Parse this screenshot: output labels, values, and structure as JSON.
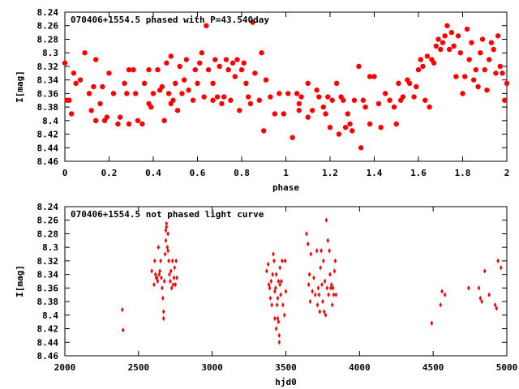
{
  "chart_data": [
    {
      "type": "scatter",
      "title": "070406+1554.5 phased with P=43.540day",
      "xlabel": "phase",
      "ylabel": "I[mag]",
      "xlim": [
        0,
        2
      ],
      "ylim": [
        8.46,
        8.24
      ],
      "y_inverted": true,
      "grid": false,
      "legend": "none",
      "x_ticks": [
        "0",
        "0.2",
        "0.4",
        "0.6",
        "0.8",
        "1",
        "1.2",
        "1.4",
        "1.6",
        "1.8",
        "2"
      ],
      "y_ticks": [
        "8.24",
        "8.26",
        "8.28",
        "8.3",
        "8.32",
        "8.34",
        "8.36",
        "8.38",
        "8.4",
        "8.42",
        "8.44",
        "8.46"
      ],
      "marker": "filled-circle",
      "color": "#ff0000",
      "points": [
        [
          0.0,
          8.315
        ],
        [
          0.01,
          8.37
        ],
        [
          0.02,
          8.37
        ],
        [
          0.03,
          8.39
        ],
        [
          0.04,
          8.33
        ],
        [
          0.05,
          8.345
        ],
        [
          0.07,
          8.34
        ],
        [
          0.09,
          8.3
        ],
        [
          0.11,
          8.36
        ],
        [
          0.12,
          8.385
        ],
        [
          0.13,
          8.35
        ],
        [
          0.14,
          8.31
        ],
        [
          0.14,
          8.4
        ],
        [
          0.16,
          8.375
        ],
        [
          0.17,
          8.35
        ],
        [
          0.18,
          8.4
        ],
        [
          0.19,
          8.395
        ],
        [
          0.2,
          8.33
        ],
        [
          0.22,
          8.36
        ],
        [
          0.24,
          8.405
        ],
        [
          0.25,
          8.395
        ],
        [
          0.27,
          8.345
        ],
        [
          0.28,
          8.36
        ],
        [
          0.29,
          8.325
        ],
        [
          0.29,
          8.405
        ],
        [
          0.31,
          8.325
        ],
        [
          0.32,
          8.36
        ],
        [
          0.33,
          8.4
        ],
        [
          0.35,
          8.405
        ],
        [
          0.36,
          8.345
        ],
        [
          0.38,
          8.325
        ],
        [
          0.38,
          8.375
        ],
        [
          0.39,
          8.38
        ],
        [
          0.4,
          8.36
        ],
        [
          0.42,
          8.325
        ],
        [
          0.43,
          8.355
        ],
        [
          0.44,
          8.35
        ],
        [
          0.45,
          8.4
        ],
        [
          0.46,
          8.315
        ],
        [
          0.47,
          8.36
        ],
        [
          0.48,
          8.305
        ],
        [
          0.48,
          8.375
        ],
        [
          0.49,
          8.37
        ],
        [
          0.5,
          8.345
        ],
        [
          0.51,
          8.385
        ],
        [
          0.52,
          8.32
        ],
        [
          0.53,
          8.36
        ],
        [
          0.54,
          8.34
        ],
        [
          0.55,
          8.31
        ],
        [
          0.56,
          8.355
        ],
        [
          0.58,
          8.37
        ],
        [
          0.59,
          8.325
        ],
        [
          0.6,
          8.345
        ],
        [
          0.61,
          8.315
        ],
        [
          0.62,
          8.3
        ],
        [
          0.63,
          8.365
        ],
        [
          0.64,
          8.26
        ],
        [
          0.65,
          8.325
        ],
        [
          0.67,
          8.345
        ],
        [
          0.67,
          8.37
        ],
        [
          0.68,
          8.31
        ],
        [
          0.69,
          8.365
        ],
        [
          0.7,
          8.32
        ],
        [
          0.71,
          8.375
        ],
        [
          0.72,
          8.365
        ],
        [
          0.73,
          8.31
        ],
        [
          0.74,
          8.325
        ],
        [
          0.75,
          8.37
        ],
        [
          0.76,
          8.315
        ],
        [
          0.77,
          8.335
        ],
        [
          0.78,
          8.31
        ],
        [
          0.79,
          8.385
        ],
        [
          0.8,
          8.325
        ],
        [
          0.81,
          8.315
        ],
        [
          0.82,
          8.345
        ],
        [
          0.83,
          8.365
        ],
        [
          0.84,
          8.375
        ],
        [
          0.85,
          8.255
        ],
        [
          0.86,
          8.33
        ],
        [
          0.88,
          8.37
        ],
        [
          0.89,
          8.3
        ],
        [
          0.9,
          8.415
        ],
        [
          0.91,
          8.34
        ],
        [
          0.93,
          8.365
        ],
        [
          0.95,
          8.39
        ],
        [
          0.97,
          8.36
        ],
        [
          0.99,
          8.39
        ],
        [
          1.01,
          8.36
        ],
        [
          1.03,
          8.425
        ],
        [
          1.05,
          8.36
        ],
        [
          1.06,
          8.375
        ],
        [
          1.06,
          8.385
        ],
        [
          1.07,
          8.365
        ],
        [
          1.1,
          8.395
        ],
        [
          1.1,
          8.345
        ],
        [
          1.12,
          8.385
        ],
        [
          1.14,
          8.355
        ],
        [
          1.15,
          8.365
        ],
        [
          1.17,
          8.38
        ],
        [
          1.18,
          8.39
        ],
        [
          1.19,
          8.365
        ],
        [
          1.2,
          8.41
        ],
        [
          1.21,
          8.37
        ],
        [
          1.23,
          8.345
        ],
        [
          1.24,
          8.42
        ],
        [
          1.25,
          8.365
        ],
        [
          1.26,
          8.37
        ],
        [
          1.27,
          8.41
        ],
        [
          1.28,
          8.39
        ],
        [
          1.29,
          8.405
        ],
        [
          1.3,
          8.415
        ],
        [
          1.31,
          8.37
        ],
        [
          1.33,
          8.32
        ],
        [
          1.34,
          8.44
        ],
        [
          1.35,
          8.37
        ],
        [
          1.36,
          8.38
        ],
        [
          1.38,
          8.405
        ],
        [
          1.38,
          8.335
        ],
        [
          1.4,
          8.335
        ],
        [
          1.42,
          8.375
        ],
        [
          1.43,
          8.41
        ],
        [
          1.45,
          8.36
        ],
        [
          1.47,
          8.37
        ],
        [
          1.49,
          8.38
        ],
        [
          1.5,
          8.405
        ],
        [
          1.51,
          8.345
        ],
        [
          1.52,
          8.37
        ],
        [
          1.53,
          8.365
        ],
        [
          1.55,
          8.34
        ],
        [
          1.56,
          8.345
        ],
        [
          1.58,
          8.365
        ],
        [
          1.59,
          8.35
        ],
        [
          1.6,
          8.325
        ],
        [
          1.61,
          8.31
        ],
        [
          1.62,
          8.32
        ],
        [
          1.63,
          8.37
        ],
        [
          1.64,
          8.305
        ],
        [
          1.65,
          8.38
        ],
        [
          1.66,
          8.31
        ],
        [
          1.67,
          8.315
        ],
        [
          1.68,
          8.29
        ],
        [
          1.69,
          8.28
        ],
        [
          1.7,
          8.295
        ],
        [
          1.71,
          8.285
        ],
        [
          1.72,
          8.275
        ],
        [
          1.73,
          8.26
        ],
        [
          1.74,
          8.295
        ],
        [
          1.75,
          8.27
        ],
        [
          1.76,
          8.29
        ],
        [
          1.77,
          8.335
        ],
        [
          1.78,
          8.275
        ],
        [
          1.79,
          8.3
        ],
        [
          1.8,
          8.36
        ],
        [
          1.81,
          8.335
        ],
        [
          1.82,
          8.265
        ],
        [
          1.83,
          8.31
        ],
        [
          1.84,
          8.285
        ],
        [
          1.85,
          8.34
        ],
        [
          1.86,
          8.325
        ],
        [
          1.87,
          8.35
        ],
        [
          1.88,
          8.3
        ],
        [
          1.89,
          8.28
        ],
        [
          1.9,
          8.325
        ],
        [
          1.91,
          8.355
        ],
        [
          1.92,
          8.31
        ],
        [
          1.93,
          8.285
        ],
        [
          1.94,
          8.295
        ],
        [
          1.95,
          8.33
        ],
        [
          1.96,
          8.275
        ],
        [
          1.97,
          8.32
        ],
        [
          1.98,
          8.33
        ],
        [
          1.99,
          8.37
        ],
        [
          2.0,
          8.345
        ]
      ]
    },
    {
      "type": "scatter",
      "title": "070406+1554.5 not phased light curve",
      "xlabel": "hjd0",
      "ylabel": "I[mag]",
      "xlim": [
        2000,
        5000
      ],
      "ylim": [
        8.46,
        8.24
      ],
      "y_inverted": true,
      "grid": false,
      "legend": "none",
      "x_ticks": [
        "2000",
        "2500",
        "3000",
        "3500",
        "4000",
        "4500",
        "5000"
      ],
      "y_ticks": [
        "8.24",
        "8.26",
        "8.28",
        "8.3",
        "8.32",
        "8.34",
        "8.36",
        "8.38",
        "8.4",
        "8.42",
        "8.44",
        "8.46"
      ],
      "marker": "small-diamond",
      "color": "#ff0000",
      "points": [
        [
          2390,
          8.392
        ],
        [
          2395,
          8.422
        ],
        [
          2590,
          8.335
        ],
        [
          2605,
          8.355
        ],
        [
          2610,
          8.32
        ],
        [
          2615,
          8.34
        ],
        [
          2620,
          8.345
        ],
        [
          2625,
          8.345
        ],
        [
          2630,
          8.35
        ],
        [
          2635,
          8.3
        ],
        [
          2640,
          8.34
        ],
        [
          2645,
          8.335
        ],
        [
          2650,
          8.32
        ],
        [
          2655,
          8.345
        ],
        [
          2660,
          8.36
        ],
        [
          2665,
          8.375
        ],
        [
          2670,
          8.395
        ],
        [
          2670,
          8.405
        ],
        [
          2675,
          8.35
        ],
        [
          2680,
          8.31
        ],
        [
          2685,
          8.29
        ],
        [
          2685,
          8.275
        ],
        [
          2690,
          8.265
        ],
        [
          2690,
          8.27
        ],
        [
          2695,
          8.3
        ],
        [
          2700,
          8.28
        ],
        [
          2700,
          8.305
        ],
        [
          2705,
          8.32
        ],
        [
          2710,
          8.34
        ],
        [
          2715,
          8.35
        ],
        [
          2720,
          8.335
        ],
        [
          2725,
          8.36
        ],
        [
          2730,
          8.32
        ],
        [
          2735,
          8.355
        ],
        [
          2740,
          8.345
        ],
        [
          2745,
          8.33
        ],
        [
          2750,
          8.355
        ],
        [
          2755,
          8.32
        ],
        [
          2760,
          8.345
        ],
        [
          3370,
          8.335
        ],
        [
          3380,
          8.325
        ],
        [
          3385,
          8.355
        ],
        [
          3390,
          8.36
        ],
        [
          3395,
          8.375
        ],
        [
          3400,
          8.35
        ],
        [
          3405,
          8.385
        ],
        [
          3410,
          8.34
        ],
        [
          3415,
          8.31
        ],
        [
          3420,
          8.32
        ],
        [
          3425,
          8.365
        ],
        [
          3425,
          8.405
        ],
        [
          3430,
          8.36
        ],
        [
          3435,
          8.34
        ],
        [
          3435,
          8.42
        ],
        [
          3440,
          8.385
        ],
        [
          3445,
          8.375
        ],
        [
          3445,
          8.405
        ],
        [
          3450,
          8.35
        ],
        [
          3450,
          8.41
        ],
        [
          3455,
          8.44
        ],
        [
          3455,
          8.43
        ],
        [
          3460,
          8.355
        ],
        [
          3460,
          8.33
        ],
        [
          3465,
          8.37
        ],
        [
          3470,
          8.35
        ],
        [
          3475,
          8.32
        ],
        [
          3480,
          8.385
        ],
        [
          3490,
          8.4
        ],
        [
          3495,
          8.32
        ],
        [
          3500,
          8.365
        ],
        [
          3640,
          8.28
        ],
        [
          3650,
          8.295
        ],
        [
          3655,
          8.355
        ],
        [
          3660,
          8.34
        ],
        [
          3665,
          8.38
        ],
        [
          3670,
          8.31
        ],
        [
          3680,
          8.365
        ],
        [
          3690,
          8.345
        ],
        [
          3700,
          8.37
        ],
        [
          3710,
          8.305
        ],
        [
          3715,
          8.385
        ],
        [
          3720,
          8.36
        ],
        [
          3725,
          8.37
        ],
        [
          3730,
          8.395
        ],
        [
          3735,
          8.33
        ],
        [
          3740,
          8.305
        ],
        [
          3745,
          8.355
        ],
        [
          3750,
          8.38
        ],
        [
          3755,
          8.32
        ],
        [
          3760,
          8.395
        ],
        [
          3765,
          8.35
        ],
        [
          3770,
          8.4
        ],
        [
          3775,
          8.26
        ],
        [
          3780,
          8.36
        ],
        [
          3785,
          8.29
        ],
        [
          3790,
          8.37
        ],
        [
          3795,
          8.305
        ],
        [
          3800,
          8.34
        ],
        [
          3805,
          8.36
        ],
        [
          3810,
          8.355
        ],
        [
          3815,
          8.385
        ],
        [
          3820,
          8.36
        ],
        [
          3825,
          8.37
        ],
        [
          3830,
          8.335
        ],
        [
          3835,
          8.32
        ],
        [
          3840,
          8.37
        ],
        [
          4490,
          8.412
        ],
        [
          4550,
          8.385
        ],
        [
          4560,
          8.365
        ],
        [
          4580,
          8.37
        ],
        [
          4740,
          8.36
        ],
        [
          4810,
          8.36
        ],
        [
          4820,
          8.375
        ],
        [
          4830,
          8.38
        ],
        [
          4850,
          8.335
        ],
        [
          4880,
          8.37
        ],
        [
          4920,
          8.385
        ],
        [
          4930,
          8.39
        ],
        [
          4940,
          8.32
        ],
        [
          4960,
          8.33
        ]
      ]
    }
  ]
}
